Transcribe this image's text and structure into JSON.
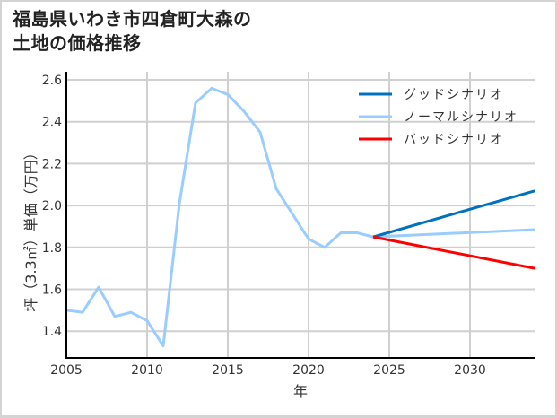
{
  "title": "福島県いわき市四倉町大森の\n土地の価格推移",
  "colors": {
    "good": "#0070C0",
    "normal": "#99CCFF",
    "bad": "#FF0000",
    "grid": "#D0D0D0",
    "axis": "#000000"
  },
  "chart_data": {
    "type": "line",
    "title": "福島県いわき市四倉町大森の土地の価格推移",
    "xlabel": "年",
    "ylabel": "坪（3.3㎡）単価（万円）",
    "xlim": [
      2005,
      2034
    ],
    "ylim": [
      1.27,
      2.6
    ],
    "x_ticks": [
      2005,
      2010,
      2015,
      2020,
      2025,
      2030
    ],
    "y_ticks": [
      1.4,
      1.6,
      1.8,
      2.0,
      2.2,
      2.4,
      2.6
    ],
    "grid": true,
    "legend_position": "upper right",
    "historical": {
      "name": "ノーマルシナリオ",
      "x": [
        2005,
        2006,
        2007,
        2008,
        2009,
        2010,
        2011,
        2012,
        2013,
        2014,
        2015,
        2016,
        2017,
        2018,
        2019,
        2020,
        2021,
        2022,
        2023,
        2024
      ],
      "values": [
        1.5,
        1.49,
        1.61,
        1.47,
        1.49,
        1.45,
        1.33,
        2.01,
        2.49,
        2.56,
        2.53,
        2.45,
        2.35,
        2.08,
        1.96,
        1.84,
        1.8,
        1.87,
        1.87,
        1.85
      ]
    },
    "series": [
      {
        "name": "グッドシナリオ",
        "color": "#0070C0",
        "x": [
          2024,
          2034
        ],
        "values": [
          1.85,
          2.07
        ]
      },
      {
        "name": "ノーマルシナリオ",
        "color": "#99CCFF",
        "x": [
          2024,
          2034
        ],
        "values": [
          1.85,
          1.885
        ]
      },
      {
        "name": "バッドシナリオ",
        "color": "#FF0000",
        "x": [
          2024,
          2034
        ],
        "values": [
          1.85,
          1.7
        ]
      }
    ]
  },
  "legend": [
    {
      "label": "グッドシナリオ",
      "color": "#0070C0"
    },
    {
      "label": "ノーマルシナリオ",
      "color": "#99CCFF"
    },
    {
      "label": "バッドシナリオ",
      "color": "#FF0000"
    }
  ],
  "axes": {
    "x_labels": [
      "2005",
      "2010",
      "2015",
      "2020",
      "2025",
      "2030"
    ],
    "y_labels": [
      "2.6",
      "2.4",
      "2.2",
      "2.0",
      "1.8",
      "1.6",
      "1.4"
    ],
    "xlabel": "年",
    "ylabel": "坪（3.3㎡）単価（万円）"
  }
}
